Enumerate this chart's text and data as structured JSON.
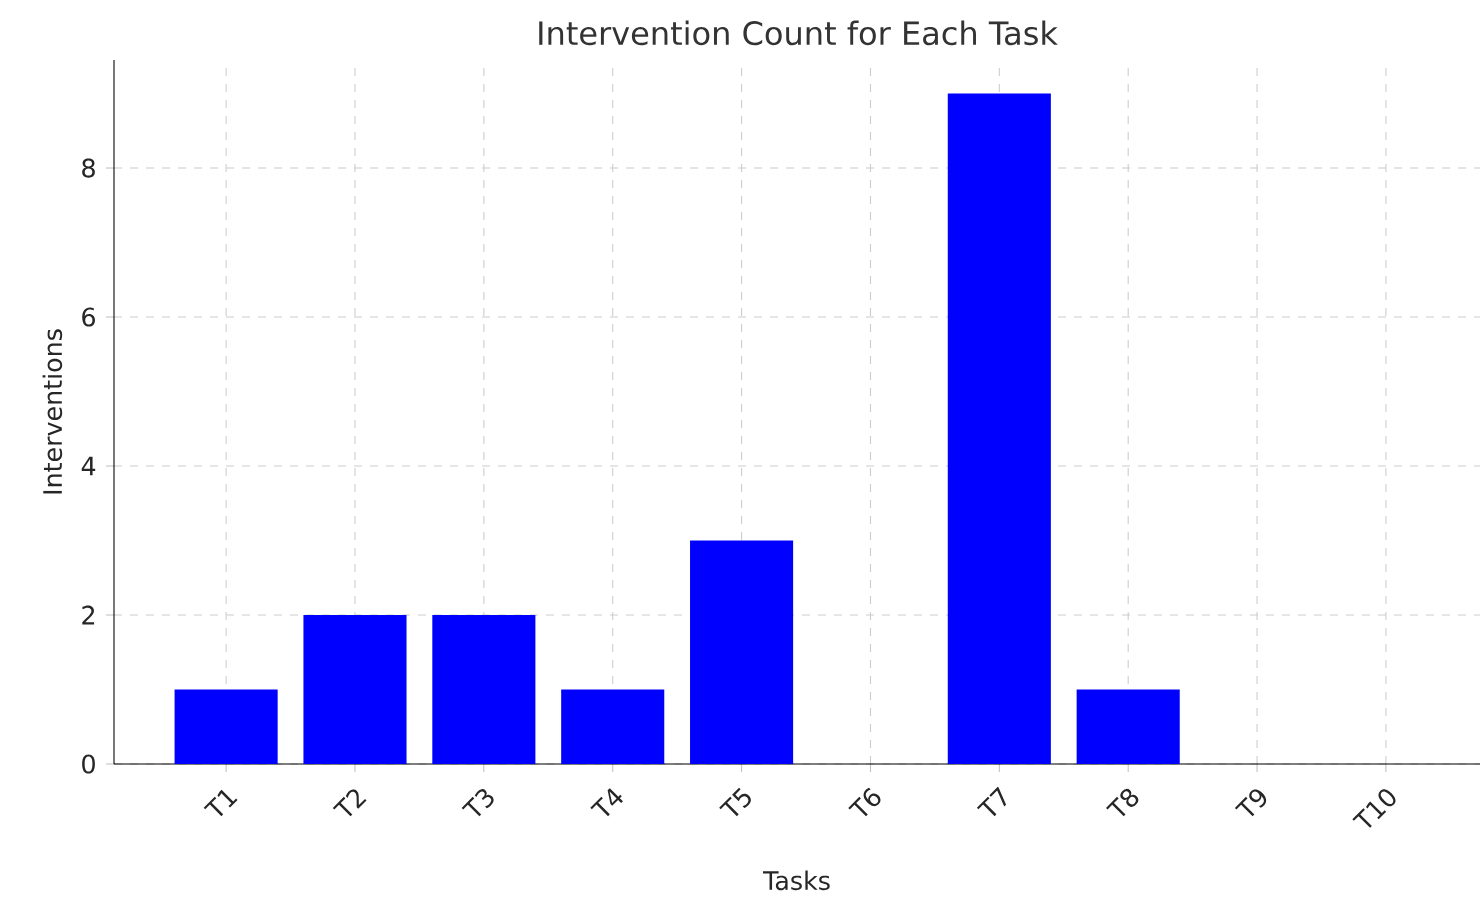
{
  "chart_data": {
    "type": "bar",
    "title": "Intervention Count for Each Task",
    "xlabel": "Tasks",
    "ylabel": "Interventions",
    "categories": [
      "T1",
      "T2",
      "T3",
      "T4",
      "T5",
      "T6",
      "T7",
      "T8",
      "T9",
      "T10"
    ],
    "values": [
      1,
      2,
      2,
      1,
      3,
      0,
      9,
      1,
      0,
      0
    ],
    "color": "#0000ff",
    "ylim": [
      0,
      9.45
    ],
    "yticks": [
      0,
      2,
      4,
      6,
      8
    ],
    "grid": true
  }
}
